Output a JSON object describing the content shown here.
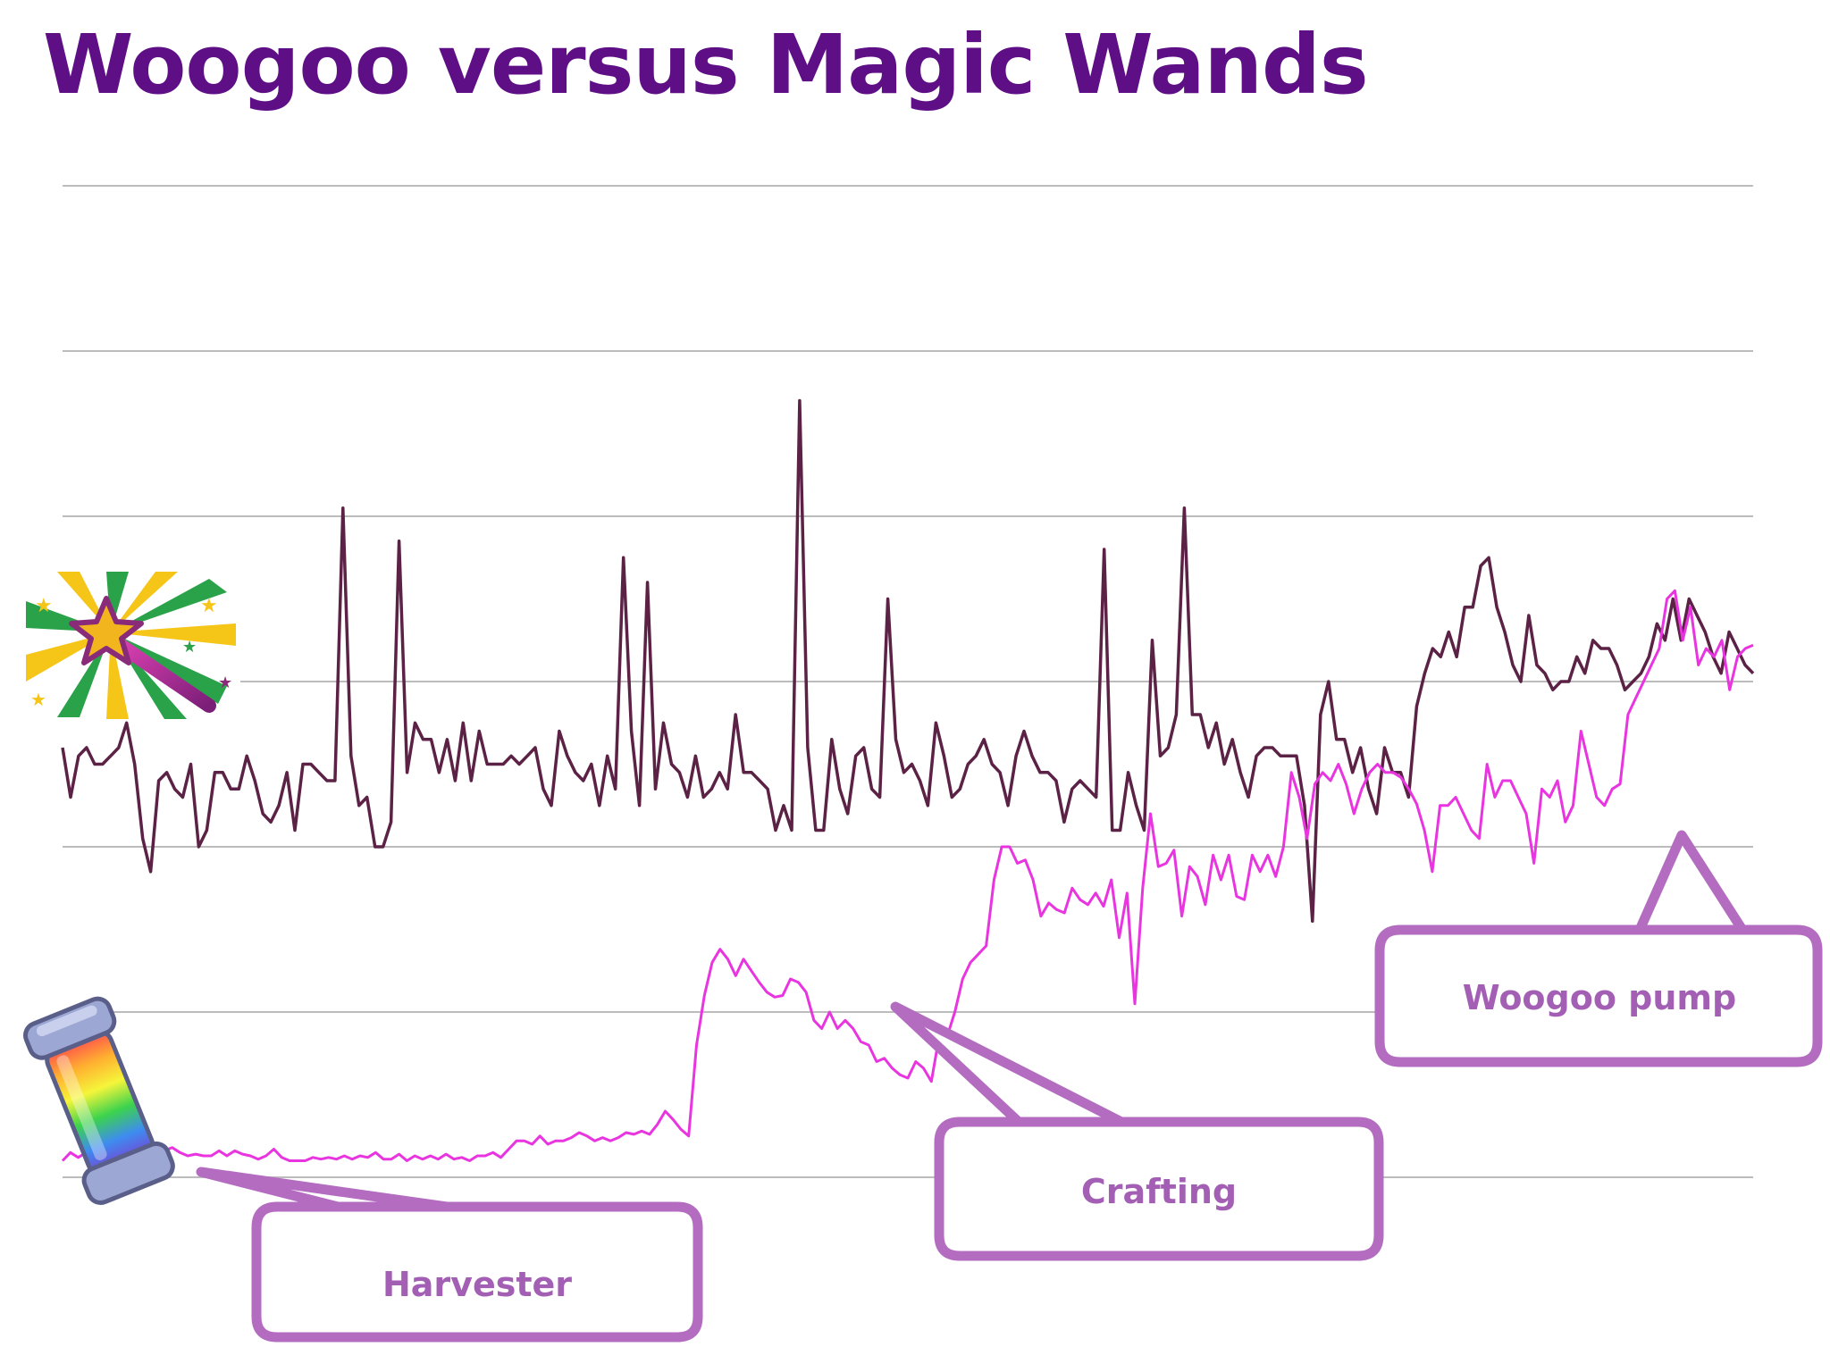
{
  "slide": {
    "title": "Woogoo versus Magic Wands",
    "title_color": "#5e0f86"
  },
  "icons": {
    "wand": "magic-wand-icon",
    "harvester": "rainbow-woogoo-harvester-icon"
  },
  "chart_data": {
    "type": "line",
    "title": "",
    "xlabel": "",
    "ylabel": "",
    "ylim": [
      0,
      6
    ],
    "grid": true,
    "legend": "none",
    "gridline_color": "#bcbcbc",
    "series": [
      {
        "color": "#5b2245",
        "values": [
          2.6,
          2.3,
          2.55,
          2.6,
          2.5,
          2.5,
          2.55,
          2.6,
          2.75,
          2.5,
          2.05,
          1.85,
          2.4,
          2.45,
          2.35,
          2.3,
          2.5,
          2.0,
          2.1,
          2.45,
          2.45,
          2.35,
          2.35,
          2.55,
          2.4,
          2.2,
          2.15,
          2.25,
          2.45,
          2.1,
          2.5,
          2.5,
          2.45,
          2.4,
          2.4,
          4.05,
          2.55,
          2.25,
          2.3,
          2.0,
          2.0,
          2.15,
          3.85,
          2.45,
          2.75,
          2.65,
          2.65,
          2.45,
          2.65,
          2.4,
          2.75,
          2.4,
          2.7,
          2.5,
          2.5,
          2.5,
          2.55,
          2.5,
          2.55,
          2.6,
          2.35,
          2.25,
          2.7,
          2.55,
          2.45,
          2.4,
          2.5,
          2.25,
          2.55,
          2.35,
          3.75,
          2.7,
          2.25,
          3.6,
          2.35,
          2.75,
          2.5,
          2.45,
          2.3,
          2.55,
          2.3,
          2.35,
          2.45,
          2.35,
          2.8,
          2.45,
          2.45,
          2.4,
          2.35,
          2.1,
          2.25,
          2.1,
          4.7,
          2.6,
          2.1,
          2.1,
          2.65,
          2.35,
          2.2,
          2.55,
          2.6,
          2.35,
          2.3,
          3.5,
          2.65,
          2.45,
          2.5,
          2.4,
          2.25,
          2.75,
          2.55,
          2.3,
          2.35,
          2.5,
          2.55,
          2.65,
          2.5,
          2.45,
          2.25,
          2.55,
          2.7,
          2.55,
          2.45,
          2.45,
          2.4,
          2.15,
          2.35,
          2.4,
          2.35,
          2.3,
          3.8,
          2.1,
          2.1,
          2.45,
          2.25,
          2.1,
          3.25,
          2.55,
          2.6,
          2.8,
          4.05,
          2.8,
          2.8,
          2.6,
          2.75,
          2.5,
          2.65,
          2.45,
          2.3,
          2.55,
          2.6,
          2.6,
          2.55,
          2.55,
          2.55,
          2.25,
          1.55,
          2.8,
          3.0,
          2.65,
          2.65,
          2.45,
          2.6,
          2.35,
          2.2,
          2.6,
          2.45,
          2.45,
          2.3,
          2.85,
          3.05,
          3.2,
          3.15,
          3.3,
          3.15,
          3.45,
          3.45,
          3.7,
          3.75,
          3.45,
          3.3,
          3.1,
          3.0,
          3.4,
          3.1,
          3.05,
          2.95,
          3.0,
          3.0,
          3.15,
          3.05,
          3.25,
          3.2,
          3.2,
          3.1,
          2.95,
          3.0,
          3.05,
          3.15,
          3.35,
          3.25,
          3.5,
          3.25,
          3.5,
          3.4,
          3.3,
          3.15,
          3.05,
          3.3,
          3.2,
          3.1,
          3.05
        ]
      },
      {
        "color": "#e835e0",
        "values": [
          0.1,
          0.15,
          0.12,
          0.15,
          0.15,
          0.14,
          0.12,
          0.11,
          0.14,
          0.13,
          0.13,
          0.14,
          0.13,
          0.16,
          0.18,
          0.15,
          0.13,
          0.14,
          0.13,
          0.13,
          0.16,
          0.13,
          0.16,
          0.14,
          0.13,
          0.11,
          0.13,
          0.17,
          0.12,
          0.1,
          0.1,
          0.1,
          0.12,
          0.11,
          0.12,
          0.11,
          0.13,
          0.11,
          0.13,
          0.12,
          0.15,
          0.11,
          0.11,
          0.14,
          0.1,
          0.13,
          0.11,
          0.13,
          0.11,
          0.14,
          0.11,
          0.12,
          0.1,
          0.13,
          0.13,
          0.15,
          0.12,
          0.17,
          0.22,
          0.22,
          0.2,
          0.25,
          0.2,
          0.22,
          0.22,
          0.24,
          0.27,
          0.25,
          0.22,
          0.24,
          0.22,
          0.24,
          0.27,
          0.26,
          0.28,
          0.26,
          0.32,
          0.4,
          0.35,
          0.29,
          0.25,
          0.8,
          1.1,
          1.3,
          1.38,
          1.32,
          1.22,
          1.32,
          1.25,
          1.18,
          1.12,
          1.09,
          1.1,
          1.2,
          1.18,
          1.12,
          0.95,
          0.9,
          1.0,
          0.9,
          0.95,
          0.9,
          0.82,
          0.8,
          0.7,
          0.72,
          0.66,
          0.62,
          0.6,
          0.7,
          0.66,
          0.58,
          0.85,
          0.85,
          1.0,
          1.2,
          1.3,
          1.35,
          1.4,
          1.8,
          2.0,
          2.0,
          1.9,
          1.92,
          1.8,
          1.58,
          1.66,
          1.62,
          1.6,
          1.75,
          1.68,
          1.65,
          1.72,
          1.64,
          1.8,
          1.45,
          1.72,
          1.05,
          1.75,
          2.2,
          1.88,
          1.9,
          1.98,
          1.58,
          1.88,
          1.82,
          1.65,
          1.95,
          1.8,
          1.95,
          1.7,
          1.68,
          1.95,
          1.85,
          1.95,
          1.82,
          2.0,
          2.45,
          2.3,
          2.05,
          2.38,
          2.45,
          2.4,
          2.5,
          2.38,
          2.2,
          2.35,
          2.45,
          2.5,
          2.45,
          2.45,
          2.42,
          2.35,
          2.26,
          2.1,
          1.85,
          2.25,
          2.25,
          2.3,
          2.2,
          2.1,
          2.05,
          2.5,
          2.3,
          2.4,
          2.4,
          2.3,
          2.2,
          1.9,
          2.35,
          2.3,
          2.4,
          2.15,
          2.25,
          2.7,
          2.5,
          2.3,
          2.25,
          2.35,
          2.38,
          2.8,
          2.9,
          3.0,
          3.1,
          3.2,
          3.5,
          3.55,
          3.25,
          3.45,
          3.1,
          3.2,
          3.15,
          3.25,
          2.95,
          3.15,
          3.2,
          3.22
        ]
      }
    ],
    "annotations": [
      "Harvester",
      "Crafting",
      "Woogoo pump"
    ]
  },
  "callouts": [
    {
      "label": "Harvester",
      "stroke": "#b36cc0",
      "text_color": "#a35fb4"
    },
    {
      "label": "Crafting",
      "stroke": "#b36cc0",
      "text_color": "#a35fb4"
    },
    {
      "label": "Woogoo pump",
      "stroke": "#b36cc0",
      "text_color": "#a35fb4"
    }
  ]
}
